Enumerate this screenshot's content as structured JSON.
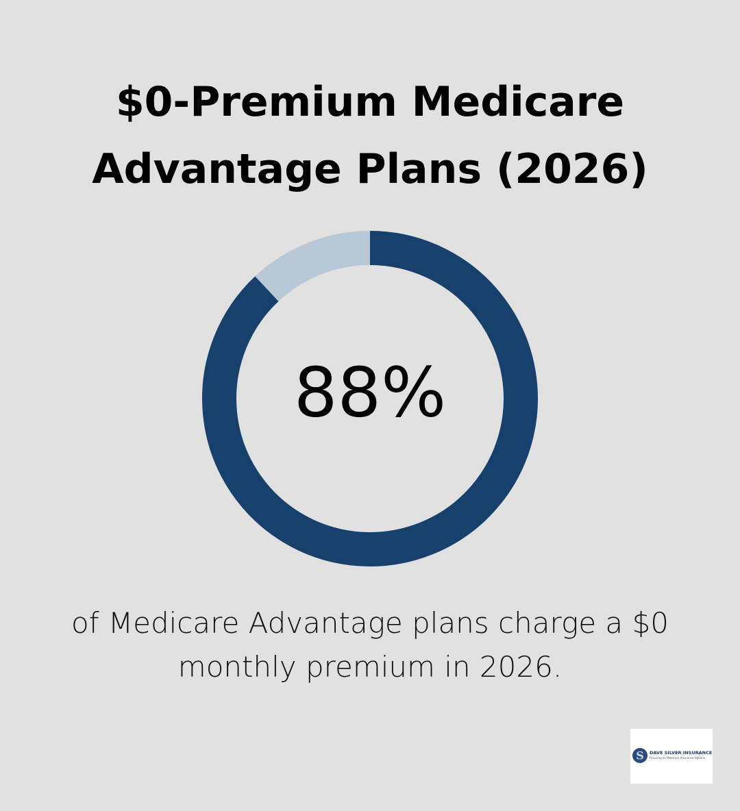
{
  "chart_data": {
    "type": "donut",
    "title": "$0-Premium Medicare Advantage Plans (2026)",
    "values": [
      88,
      12
    ],
    "value_labels": [
      "88%",
      null
    ],
    "colors": [
      "#17406d",
      "#b8c8d6"
    ],
    "caption": "of Medicare Advantage plans charge a $0 monthly premium in 2026."
  },
  "logo": {
    "name": "DAVE SILVER INSURANCE",
    "tagline": "Focusing on Medicare Insurance Options"
  }
}
